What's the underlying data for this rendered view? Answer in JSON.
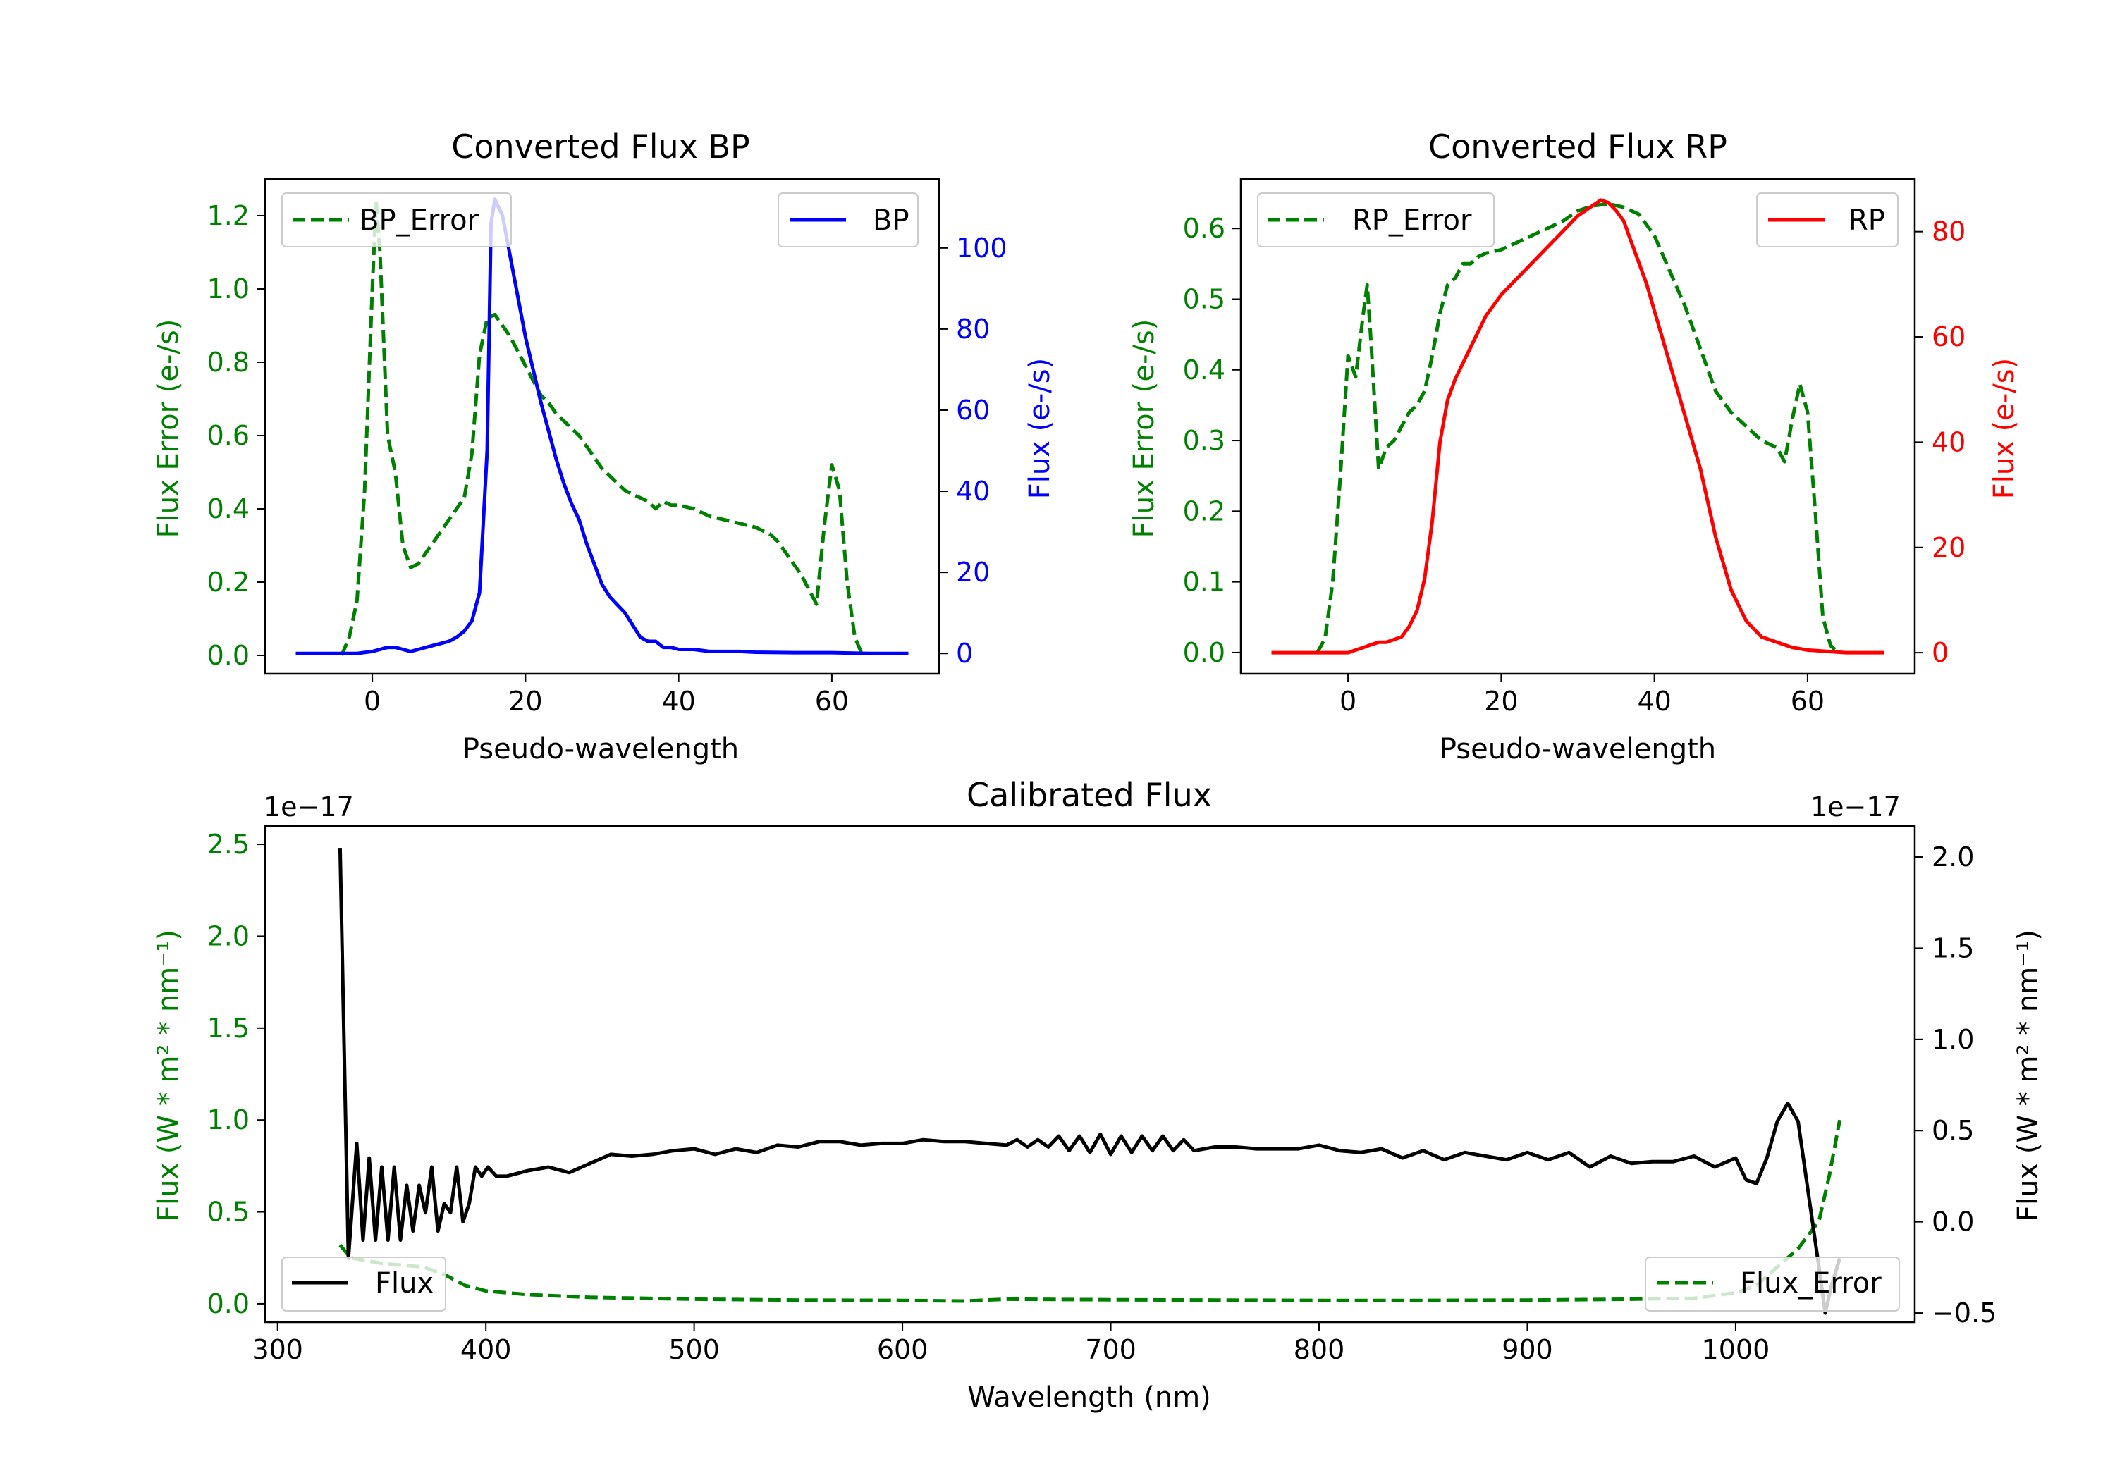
{
  "colors": {
    "bp": "#0000ff",
    "rp": "#ff0000",
    "err": "#008000",
    "flux": "#000000",
    "axis": "#000000"
  },
  "chart_data": [
    {
      "id": "bp",
      "type": "line",
      "title": "Converted Flux BP",
      "xlabel": "Pseudo-wavelength",
      "ylabel_left": "Flux Error (e-/s)",
      "ylabel_right": "Flux (e-/s)",
      "xlim": [
        -14,
        74
      ],
      "ylim_left": [
        -0.05,
        1.3
      ],
      "ylim_right": [
        -5,
        117
      ],
      "xticks": [
        0,
        20,
        40,
        60
      ],
      "yticks_left": [
        0.0,
        0.2,
        0.4,
        0.6,
        0.8,
        1.0,
        1.2
      ],
      "yticks_right": [
        0,
        20,
        40,
        60,
        80,
        100
      ],
      "legend_left": {
        "label": "BP_Error",
        "loc": "upper-left"
      },
      "legend_right": {
        "label": "BP",
        "loc": "upper-right"
      },
      "series": [
        {
          "name": "BP_Error",
          "axis": "left",
          "style": "dashed",
          "color": "#008000",
          "x": [
            -4,
            -3,
            -2,
            -1,
            0,
            0.5,
            1,
            2,
            3,
            4,
            5,
            6,
            7,
            8,
            9,
            10,
            11,
            12,
            13,
            14,
            15,
            16,
            17,
            18,
            19,
            20,
            21,
            22,
            23,
            24,
            25,
            26,
            27,
            28,
            29,
            30,
            31,
            32,
            33,
            34,
            35,
            36,
            37,
            38,
            39,
            40,
            42,
            44,
            46,
            48,
            50,
            52,
            53,
            54,
            55,
            56,
            57,
            58,
            59,
            60,
            61,
            62,
            63,
            64
          ],
          "y": [
            0.0,
            0.05,
            0.15,
            0.45,
            1.0,
            1.24,
            1.1,
            0.6,
            0.5,
            0.3,
            0.24,
            0.25,
            0.28,
            0.31,
            0.34,
            0.37,
            0.4,
            0.43,
            0.55,
            0.82,
            0.92,
            0.93,
            0.9,
            0.87,
            0.83,
            0.79,
            0.75,
            0.71,
            0.69,
            0.66,
            0.64,
            0.62,
            0.6,
            0.57,
            0.54,
            0.51,
            0.49,
            0.47,
            0.45,
            0.44,
            0.43,
            0.42,
            0.4,
            0.42,
            0.41,
            0.41,
            0.4,
            0.38,
            0.37,
            0.36,
            0.35,
            0.33,
            0.31,
            0.28,
            0.25,
            0.22,
            0.18,
            0.14,
            0.35,
            0.52,
            0.45,
            0.2,
            0.05,
            0.0
          ]
        },
        {
          "name": "BP",
          "axis": "right",
          "style": "solid",
          "color": "#0000ff",
          "x": [
            -10,
            -5,
            -2,
            0,
            1,
            2,
            3,
            4,
            5,
            6,
            7,
            8,
            9,
            10,
            11,
            12,
            13,
            14,
            15,
            15.5,
            16,
            17,
            18,
            19,
            20,
            21,
            22,
            23,
            24,
            25,
            26,
            27,
            28,
            29,
            30,
            31,
            32,
            33,
            34,
            35,
            36,
            37,
            38,
            39,
            40,
            42,
            44,
            46,
            48,
            50,
            55,
            60,
            65,
            70
          ],
          "y": [
            0,
            0,
            0,
            0.5,
            1,
            1.5,
            1.5,
            1,
            0.5,
            1,
            1.5,
            2,
            2.5,
            3,
            4,
            5.5,
            8,
            15,
            50,
            106,
            112,
            108,
            98,
            88,
            78,
            70,
            62,
            55,
            48,
            42,
            37,
            33,
            27,
            22,
            17,
            14,
            12,
            10,
            7,
            4,
            3,
            3,
            1.5,
            1.5,
            1,
            1,
            0.5,
            0.5,
            0.5,
            0.3,
            0.2,
            0.2,
            0,
            0
          ]
        }
      ]
    },
    {
      "id": "rp",
      "type": "line",
      "title": "Converted Flux RP",
      "xlabel": "Pseudo-wavelength",
      "ylabel_left": "Flux Error (e-/s)",
      "ylabel_right": "Flux (e-/s)",
      "xlim": [
        -14,
        74
      ],
      "ylim_left": [
        -0.03,
        0.67
      ],
      "ylim_right": [
        -4,
        90
      ],
      "xticks": [
        0,
        20,
        40,
        60
      ],
      "yticks_left": [
        0.0,
        0.1,
        0.2,
        0.3,
        0.4,
        0.5,
        0.6
      ],
      "yticks_right": [
        0,
        20,
        40,
        60,
        80
      ],
      "legend_left": {
        "label": "RP_Error",
        "loc": "upper-left"
      },
      "legend_right": {
        "label": "RP",
        "loc": "upper-right"
      },
      "series": [
        {
          "name": "RP_Error",
          "axis": "left",
          "style": "dashed",
          "color": "#008000",
          "x": [
            -4,
            -3,
            -2,
            -1,
            0,
            1,
            2,
            2.5,
            3,
            4,
            5,
            6,
            7,
            8,
            9,
            10,
            11,
            12,
            13,
            14,
            15,
            16,
            17,
            18,
            20,
            22,
            24,
            26,
            28,
            30,
            32,
            34,
            36,
            38,
            40,
            42,
            44,
            46,
            48,
            50,
            52,
            54,
            56,
            57,
            58,
            59,
            60,
            61,
            62,
            63,
            64
          ],
          "y": [
            0.0,
            0.02,
            0.1,
            0.25,
            0.42,
            0.39,
            0.48,
            0.52,
            0.44,
            0.26,
            0.29,
            0.3,
            0.32,
            0.34,
            0.35,
            0.37,
            0.42,
            0.48,
            0.52,
            0.53,
            0.55,
            0.55,
            0.56,
            0.565,
            0.57,
            0.58,
            0.59,
            0.6,
            0.61,
            0.625,
            0.632,
            0.635,
            0.63,
            0.62,
            0.59,
            0.54,
            0.49,
            0.43,
            0.37,
            0.34,
            0.32,
            0.3,
            0.29,
            0.27,
            0.33,
            0.38,
            0.34,
            0.2,
            0.05,
            0.01,
            0.0
          ]
        },
        {
          "name": "RP",
          "axis": "right",
          "style": "solid",
          "color": "#ff0000",
          "x": [
            -10,
            -5,
            -2,
            0,
            1,
            2,
            3,
            4,
            5,
            6,
            7,
            8,
            9,
            10,
            11,
            12,
            13,
            14,
            15,
            16,
            18,
            20,
            22,
            24,
            26,
            28,
            30,
            31,
            32,
            33,
            34,
            35,
            36,
            37,
            38,
            39,
            40,
            42,
            44,
            46,
            48,
            50,
            52,
            54,
            56,
            58,
            60,
            65,
            70
          ],
          "y": [
            0,
            0,
            0,
            0,
            0.5,
            1,
            1.5,
            2,
            2,
            2.5,
            3,
            5,
            8,
            14,
            25,
            40,
            48,
            52,
            55,
            58,
            64,
            68,
            71,
            74,
            77,
            80,
            83,
            84,
            85,
            86,
            85.5,
            84,
            82,
            78,
            74,
            70,
            65,
            55,
            45,
            35,
            22,
            12,
            6,
            3,
            2,
            1,
            0.5,
            0,
            0
          ]
        }
      ]
    },
    {
      "id": "cal",
      "type": "line",
      "title": "Calibrated Flux",
      "xlabel": "Wavelength (nm)",
      "ylabel_left": "Flux (W * m² * nm⁻¹)",
      "ylabel_right": "Flux (W * m² * nm⁻¹)",
      "offset_left": "1e−17",
      "offset_right": "1e−17",
      "xlim": [
        294,
        1086
      ],
      "ylim_left": [
        -0.1,
        2.6
      ],
      "ylim_right": [
        -0.55,
        2.17
      ],
      "xticks": [
        300,
        400,
        500,
        600,
        700,
        800,
        900,
        1000
      ],
      "yticks_left": [
        0.0,
        0.5,
        1.0,
        1.5,
        2.0,
        2.5
      ],
      "yticks_right": [
        -0.5,
        0.0,
        0.5,
        1.0,
        1.5,
        2.0
      ],
      "legend_left": {
        "label": "Flux",
        "loc": "lower-left"
      },
      "legend_right": {
        "label": "Flux_Error",
        "loc": "lower-right"
      },
      "series": [
        {
          "name": "Flux_Error",
          "axis": "left",
          "style": "dashed",
          "color": "#008000",
          "x": [
            330,
            335,
            340,
            350,
            360,
            370,
            380,
            390,
            400,
            420,
            450,
            500,
            550,
            600,
            630,
            640,
            650,
            700,
            750,
            800,
            850,
            900,
            950,
            980,
            1000,
            1010,
            1020,
            1030,
            1040,
            1045,
            1050
          ],
          "y": [
            0.32,
            0.25,
            0.24,
            0.22,
            0.21,
            0.2,
            0.16,
            0.1,
            0.07,
            0.05,
            0.035,
            0.025,
            0.02,
            0.018,
            0.015,
            0.02,
            0.025,
            0.022,
            0.02,
            0.018,
            0.018,
            0.02,
            0.025,
            0.03,
            0.06,
            0.1,
            0.2,
            0.3,
            0.45,
            0.7,
            1.0
          ]
        },
        {
          "name": "Flux",
          "axis": "right",
          "style": "solid",
          "color": "#000000",
          "x": [
            330,
            334,
            338,
            341,
            344,
            347,
            350,
            353,
            356,
            359,
            362,
            365,
            368,
            371,
            374,
            377,
            380,
            383,
            386,
            389,
            392,
            395,
            398,
            401,
            405,
            410,
            420,
            430,
            440,
            450,
            460,
            470,
            480,
            490,
            500,
            510,
            520,
            530,
            540,
            550,
            560,
            570,
            580,
            590,
            600,
            610,
            620,
            630,
            640,
            650,
            655,
            660,
            665,
            670,
            675,
            680,
            685,
            690,
            695,
            700,
            705,
            710,
            715,
            720,
            725,
            730,
            735,
            740,
            750,
            760,
            770,
            780,
            790,
            800,
            810,
            820,
            830,
            840,
            850,
            860,
            870,
            880,
            890,
            900,
            910,
            920,
            930,
            940,
            950,
            960,
            970,
            980,
            990,
            1000,
            1005,
            1010,
            1015,
            1020,
            1025,
            1030,
            1035,
            1040,
            1043,
            1046,
            1050
          ],
          "y": [
            2.05,
            -0.2,
            0.43,
            -0.1,
            0.35,
            -0.1,
            0.3,
            -0.1,
            0.3,
            -0.1,
            0.2,
            -0.05,
            0.2,
            0.05,
            0.3,
            -0.05,
            0.1,
            0.05,
            0.3,
            0.0,
            0.1,
            0.3,
            0.25,
            0.3,
            0.25,
            0.25,
            0.28,
            0.3,
            0.27,
            0.32,
            0.37,
            0.36,
            0.37,
            0.39,
            0.4,
            0.37,
            0.4,
            0.38,
            0.42,
            0.41,
            0.44,
            0.44,
            0.42,
            0.43,
            0.43,
            0.45,
            0.44,
            0.44,
            0.43,
            0.42,
            0.45,
            0.41,
            0.45,
            0.41,
            0.47,
            0.39,
            0.47,
            0.38,
            0.48,
            0.37,
            0.47,
            0.38,
            0.47,
            0.39,
            0.47,
            0.39,
            0.45,
            0.39,
            0.41,
            0.41,
            0.4,
            0.4,
            0.4,
            0.42,
            0.39,
            0.38,
            0.4,
            0.35,
            0.39,
            0.34,
            0.38,
            0.36,
            0.34,
            0.38,
            0.34,
            0.38,
            0.3,
            0.36,
            0.32,
            0.33,
            0.33,
            0.36,
            0.3,
            0.35,
            0.23,
            0.21,
            0.35,
            0.55,
            0.65,
            0.55,
            0.15,
            -0.25,
            -0.5,
            -0.35,
            -0.2
          ]
        }
      ]
    }
  ]
}
